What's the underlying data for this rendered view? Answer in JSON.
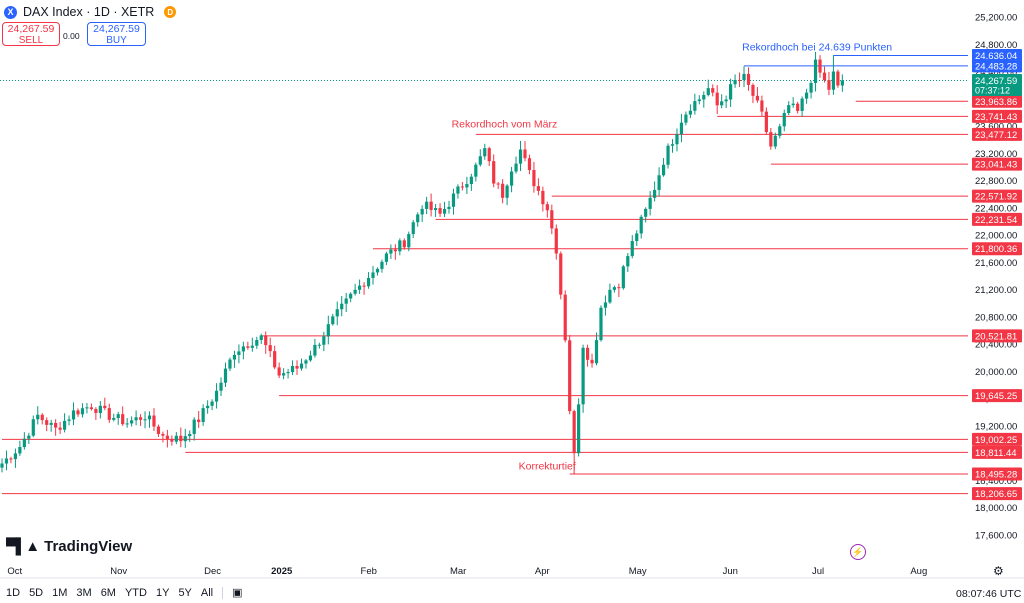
{
  "header": {
    "symbol": "DAX Index · 1D · XETR",
    "icon": "X",
    "badge": "D"
  },
  "quote": {
    "sell_price": "24,267.59",
    "sell_label": "SELL",
    "spread": "0.00",
    "buy_price": "24,267.59",
    "buy_label": "BUY"
  },
  "branding": {
    "name": "TradingView"
  },
  "toolbar": {
    "ranges": [
      "1D",
      "5D",
      "1M",
      "3M",
      "6M",
      "YTD",
      "1Y",
      "5Y",
      "All"
    ]
  },
  "clock": "08:07:46 UTC",
  "chart_data": {
    "type": "candlestick",
    "series_name": "DAX Index",
    "y_axis": {
      "min": 17600,
      "max": 25200,
      "ticks": [
        25200,
        24800,
        24400,
        24000,
        23600,
        23200,
        22800,
        22400,
        22000,
        21600,
        21200,
        20800,
        20400,
        20000,
        19600,
        19200,
        18800,
        18400,
        18000,
        17600
      ]
    },
    "x_axis": {
      "labels": [
        {
          "text": "Oct",
          "index": 3
        },
        {
          "text": "Nov",
          "index": 26
        },
        {
          "text": "Dec",
          "index": 47
        },
        {
          "text": "2025",
          "index": 62
        },
        {
          "text": "Feb",
          "index": 82
        },
        {
          "text": "Mar",
          "index": 102
        },
        {
          "text": "Apr",
          "index": 121
        },
        {
          "text": "May",
          "index": 142
        },
        {
          "text": "Jun",
          "index": 163
        },
        {
          "text": "Jul",
          "index": 183
        },
        {
          "text": "Aug",
          "index": 205
        }
      ]
    },
    "current_price": {
      "value": 24267.59,
      "label": "24,267.59",
      "countdown": "07:37:12"
    },
    "levels": [
      {
        "value": 24636.04,
        "label": "24,636.04",
        "color": "#2962ff",
        "from": 186
      },
      {
        "value": 24483.28,
        "label": "24,483.28",
        "color": "#2962ff",
        "from": 166
      },
      {
        "value": 23963.86,
        "label": "23,963.86",
        "color": "#f23645",
        "from": 191
      },
      {
        "value": 23741.43,
        "label": "23,741.43",
        "color": "#f23645",
        "from": 160
      },
      {
        "value": 23477.12,
        "label": "23,477.12",
        "color": "#f23645",
        "from": 106
      },
      {
        "value": 23041.43,
        "label": "23,041.43",
        "color": "#f23645",
        "from": 172
      },
      {
        "value": 22571.92,
        "label": "22,571.92",
        "color": "#f23645",
        "from": 123
      },
      {
        "value": 22231.54,
        "label": "22,231.54",
        "color": "#f23645",
        "from": 97
      },
      {
        "value": 21800.36,
        "label": "21,800.36",
        "color": "#f23645",
        "from": 83
      },
      {
        "value": 20521.81,
        "label": "20,521.81",
        "color": "#f23645",
        "from": 58
      },
      {
        "value": 19645.25,
        "label": "19,645.25",
        "color": "#f23645",
        "from": 62
      },
      {
        "value": 19002.25,
        "label": "19,002.25",
        "color": "#f23645",
        "from": 0
      },
      {
        "value": 18811.44,
        "label": "18,811.44",
        "color": "#f23645",
        "from": 41
      },
      {
        "value": 18495.28,
        "label": "18,495.28",
        "color": "#f23645",
        "from": 127
      },
      {
        "value": 18206.65,
        "label": "18,206.65",
        "color": "#f23645",
        "from": 0
      }
    ],
    "annotations": [
      {
        "text": "Rekordhoch bei 24.639 Punkten",
        "index": 179,
        "value": 24710,
        "color": "#2962ff"
      },
      {
        "text": "Rekordhoch vom März",
        "index": 114,
        "value": 23580,
        "color": "#f23645"
      },
      {
        "text": "Korrekturtief",
        "index": 129,
        "value": 18560,
        "color": "#f23645"
      }
    ],
    "anchors": [
      [
        0,
        18650
      ],
      [
        4,
        18900
      ],
      [
        8,
        19350
      ],
      [
        12,
        19150
      ],
      [
        16,
        19400
      ],
      [
        20,
        19500
      ],
      [
        24,
        19350
      ],
      [
        28,
        19250
      ],
      [
        32,
        19350
      ],
      [
        36,
        19050
      ],
      [
        40,
        19000
      ],
      [
        44,
        19300
      ],
      [
        48,
        19700
      ],
      [
        52,
        20300
      ],
      [
        56,
        20450
      ],
      [
        58,
        20500
      ],
      [
        62,
        19950
      ],
      [
        66,
        20050
      ],
      [
        70,
        20350
      ],
      [
        74,
        20750
      ],
      [
        78,
        21100
      ],
      [
        82,
        21400
      ],
      [
        86,
        21700
      ],
      [
        90,
        21900
      ],
      [
        94,
        22450
      ],
      [
        98,
        22300
      ],
      [
        102,
        22650
      ],
      [
        106,
        23000
      ],
      [
        108,
        23250
      ],
      [
        110,
        22800
      ],
      [
        112,
        22600
      ],
      [
        114,
        23000
      ],
      [
        116,
        23250
      ],
      [
        118,
        22900
      ],
      [
        120,
        22650
      ],
      [
        122,
        22400
      ],
      [
        124,
        21800
      ],
      [
        126,
        20500
      ],
      [
        127,
        19450
      ],
      [
        128,
        18750
      ],
      [
        130,
        20400
      ],
      [
        132,
        20100
      ],
      [
        134,
        20950
      ],
      [
        136,
        21200
      ],
      [
        138,
        21300
      ],
      [
        140,
        21700
      ],
      [
        142,
        22050
      ],
      [
        144,
        22350
      ],
      [
        146,
        22700
      ],
      [
        148,
        23100
      ],
      [
        150,
        23400
      ],
      [
        152,
        23700
      ],
      [
        154,
        23900
      ],
      [
        156,
        24000
      ],
      [
        158,
        24150
      ],
      [
        160,
        23900
      ],
      [
        162,
        24050
      ],
      [
        164,
        24250
      ],
      [
        166,
        24300
      ],
      [
        168,
        24050
      ],
      [
        170,
        23750
      ],
      [
        172,
        23300
      ],
      [
        174,
        23550
      ],
      [
        176,
        23900
      ],
      [
        178,
        23800
      ],
      [
        180,
        24100
      ],
      [
        182,
        24500
      ],
      [
        184,
        24250
      ],
      [
        186,
        24050
      ],
      [
        187,
        24150
      ],
      [
        188,
        24268
      ]
    ]
  }
}
